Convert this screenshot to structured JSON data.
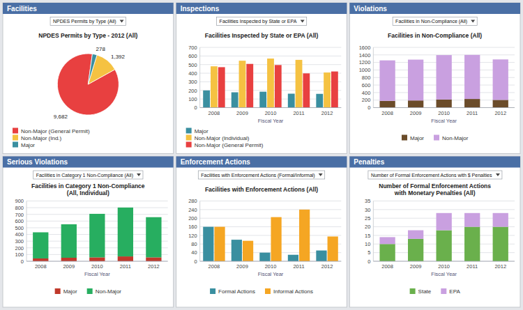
{
  "chart_data": [
    {
      "type": "pie",
      "title": "NPDES Permits by Type - 2012 (All)",
      "annotations": [
        "Facilities",
        "NPDES Permits by Type (All)"
      ],
      "categories": [
        "Non-Major (General Permit)",
        "Non-Major (Ind.)",
        "Major"
      ],
      "values": [
        9682,
        1392,
        278
      ],
      "value_labels": [
        "9,682",
        "1,392",
        "278"
      ],
      "colors": [
        "#e84040",
        "#f5c242",
        "#3a8fa0"
      ],
      "data_labels": true,
      "legend": "bottom"
    },
    {
      "type": "bar",
      "title": "Facilities Inspected by State or EPA (All)",
      "annotations": [
        "Inspections",
        "Facilities Inspected by State or EPA"
      ],
      "xlabel": "Fiscal Year",
      "categories": [
        "2008",
        "2009",
        "2010",
        "2011",
        "2012"
      ],
      "series": [
        {
          "name": "Major",
          "color": "#3a8fa0",
          "values": [
            200,
            178,
            185,
            162,
            160
          ]
        },
        {
          "name": "Non-Major (Individual)",
          "color": "#f5c242",
          "values": [
            480,
            545,
            570,
            555,
            408
          ]
        },
        {
          "name": "Non-Major (General Permit)",
          "color": "#e84040",
          "values": [
            470,
            508,
            495,
            398,
            420
          ]
        }
      ],
      "ylim": [
        0,
        700
      ],
      "yticks": [
        0,
        100,
        200,
        300,
        400,
        500,
        600,
        700
      ],
      "grid": true,
      "legend": "bottom",
      "stacked": false
    },
    {
      "type": "bar",
      "title": "Facilities in Non-Compliance (All)",
      "annotations": [
        "Violations",
        "Facilities in Non-Compliance (All)"
      ],
      "xlabel": "Fiscal Year",
      "categories": [
        "2008",
        "2009",
        "2010",
        "2011",
        "2012"
      ],
      "series": [
        {
          "name": "Major",
          "color": "#6b4c2a",
          "values": [
            180,
            190,
            215,
            230,
            205
          ]
        },
        {
          "name": "Non-Major",
          "color": "#c9a0e0",
          "values": [
            1075,
            1085,
            1180,
            1170,
            1075
          ]
        }
      ],
      "ylim": [
        0,
        1600
      ],
      "yticks": [
        0,
        200,
        400,
        600,
        800,
        1000,
        1200,
        1400,
        1600
      ],
      "grid": true,
      "legend": "bottom",
      "stacked": true
    },
    {
      "type": "bar",
      "title": "Facilities in Category 1 Non-Compliance\n(All, Individual)",
      "annotations": [
        "Serious Violations",
        "Facilities in Category 1 Non-Compliance (All)"
      ],
      "xlabel": "Fiscal Year",
      "categories": [
        "2008",
        "2009",
        "2010",
        "2011",
        "2012"
      ],
      "series": [
        {
          "name": "Major",
          "color": "#c0392b",
          "values": [
            42,
            52,
            58,
            72,
            58
          ]
        },
        {
          "name": "Non-Major",
          "color": "#27ae60",
          "values": [
            390,
            500,
            650,
            730,
            600
          ]
        }
      ],
      "ylim": [
        0,
        900
      ],
      "yticks": [
        0,
        100,
        200,
        300,
        400,
        500,
        600,
        700,
        800,
        900
      ],
      "grid": true,
      "legend": "bottom",
      "stacked": true
    },
    {
      "type": "bar",
      "title": "Facilities with Enforcement Actions (All)",
      "annotations": [
        "Enforcement Actions",
        "Facilities with Enforcement Actions (Formal/Informal)"
      ],
      "xlabel": "Fiscal Year",
      "categories": [
        "2008",
        "2009",
        "2010",
        "2011",
        "2012"
      ],
      "series": [
        {
          "name": "Formal Actions",
          "color": "#3a8fa0",
          "values": [
            160,
            100,
            40,
            30,
            50
          ]
        },
        {
          "name": "Informal Actions",
          "color": "#f5a623",
          "values": [
            160,
            95,
            205,
            240,
            115
          ]
        }
      ],
      "ylim": [
        0,
        280
      ],
      "yticks": [
        0,
        40,
        80,
        120,
        160,
        200,
        240,
        280
      ],
      "grid": true,
      "legend": "bottom",
      "stacked": false
    },
    {
      "type": "bar",
      "title": "Number of Formal Enforcement Actions\nwith Monetary Penalties (All)",
      "annotations": [
        "Penalties",
        "Number of Formal Enforcement Actions with $ Penalties"
      ],
      "xlabel": "Fiscal Year",
      "categories": [
        "2008",
        "2009",
        "2010",
        "2011",
        "2012"
      ],
      "series": [
        {
          "name": "State",
          "color": "#6ab04c",
          "values": [
            10,
            13,
            18,
            20,
            20
          ]
        },
        {
          "name": "EPA",
          "color": "#c9a0e0",
          "values": [
            4,
            5,
            10,
            8,
            8
          ]
        }
      ],
      "ylim": [
        0,
        35
      ],
      "yticks": [
        0,
        5,
        10,
        15,
        20,
        25,
        30,
        35
      ],
      "grid": true,
      "legend": "bottom",
      "stacked": true
    }
  ]
}
